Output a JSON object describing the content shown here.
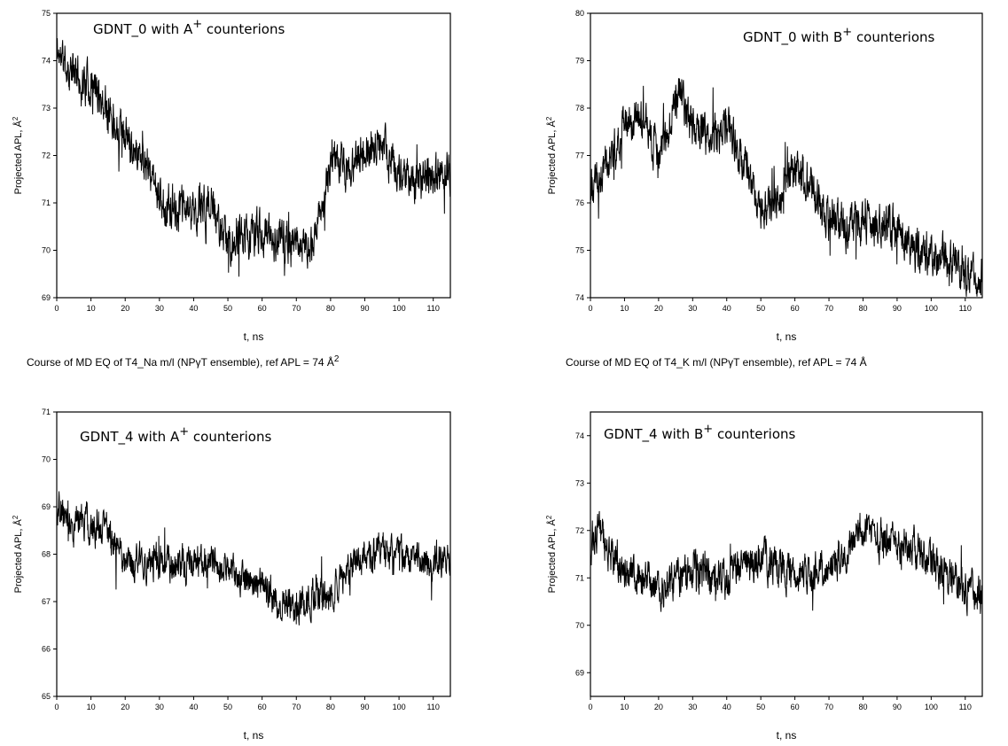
{
  "chart_data": [
    {
      "type": "line",
      "annotation": {
        "pre": "GDNT_0 with A",
        "sup": "+",
        "post": " counterions"
      },
      "xlabel": "t, ns",
      "ylabel": {
        "text": "Projected APL, Å",
        "sup": "2"
      },
      "xlim": [
        0,
        115
      ],
      "ylim": [
        69,
        75
      ],
      "xticks": [
        "0",
        "10",
        "20",
        "30",
        "40",
        "50",
        "60",
        "70",
        "80",
        "90",
        "100",
        "110"
      ],
      "yticks": [
        "69",
        "70",
        "71",
        "72",
        "73",
        "74",
        "75"
      ],
      "trend": {
        "t": [
          0,
          5,
          10,
          15,
          20,
          25,
          30,
          35,
          40,
          45,
          50,
          55,
          60,
          65,
          70,
          75,
          78,
          80,
          85,
          90,
          95,
          100,
          105,
          110,
          115
        ],
        "apl": [
          74.2,
          73.7,
          73.5,
          73.0,
          72.4,
          72.0,
          71.1,
          70.8,
          70.9,
          70.9,
          70.1,
          70.3,
          70.4,
          70.2,
          70.2,
          70.1,
          71.0,
          72.0,
          71.7,
          72.1,
          72.2,
          71.6,
          71.4,
          71.6,
          71.7
        ]
      },
      "noise": 0.35,
      "seed": 11
    },
    {
      "type": "line",
      "annotation": {
        "pre": "GDNT_0 with B",
        "sup": "+",
        "post": " counterions"
      },
      "xlabel": "t, ns",
      "ylabel": {
        "text": "Projected APL, Å",
        "sup": "2"
      },
      "xlim": [
        0,
        115
      ],
      "ylim": [
        74,
        80
      ],
      "xticks": [
        "0",
        "10",
        "20",
        "30",
        "40",
        "50",
        "60",
        "70",
        "80",
        "90",
        "100",
        "110"
      ],
      "yticks": [
        "74",
        "75",
        "76",
        "77",
        "78",
        "79",
        "80"
      ],
      "trend": {
        "t": [
          0,
          5,
          8,
          10,
          15,
          20,
          25,
          26,
          28,
          30,
          35,
          40,
          45,
          48,
          50,
          55,
          60,
          65,
          68,
          70,
          75,
          80,
          85,
          90,
          95,
          100,
          105,
          110,
          115
        ],
        "apl": [
          76.2,
          76.8,
          77.3,
          77.8,
          77.8,
          77.0,
          78.0,
          78.4,
          77.8,
          77.6,
          77.4,
          77.6,
          76.8,
          76.3,
          75.9,
          76.2,
          76.8,
          76.5,
          75.9,
          75.7,
          75.5,
          75.6,
          75.5,
          75.4,
          75.0,
          74.9,
          74.8,
          74.5,
          74.5
        ]
      },
      "noise": 0.35,
      "seed": 23
    },
    {
      "type": "line",
      "annotation": {
        "pre": "GDNT_4 with A",
        "sup": "+",
        "post": " counterions"
      },
      "xlabel": "t, ns",
      "ylabel": {
        "text": "Projected APL, Å",
        "sup": "2"
      },
      "xlim": [
        0,
        115
      ],
      "ylim": [
        65,
        71
      ],
      "xticks": [
        "0",
        "10",
        "20",
        "30",
        "40",
        "50",
        "60",
        "70",
        "80",
        "90",
        "100",
        "110"
      ],
      "yticks": [
        "65",
        "66",
        "67",
        "68",
        "69",
        "70",
        "71"
      ],
      "trend": {
        "t": [
          0,
          5,
          10,
          15,
          20,
          25,
          30,
          35,
          40,
          45,
          50,
          55,
          60,
          65,
          70,
          75,
          80,
          85,
          90,
          95,
          100,
          105,
          110,
          115
        ],
        "apl": [
          69.0,
          68.7,
          68.6,
          68.4,
          67.8,
          67.8,
          67.8,
          67.8,
          67.8,
          67.8,
          67.7,
          67.5,
          67.3,
          67.0,
          66.9,
          67.2,
          67.1,
          67.6,
          68.0,
          68.1,
          68.0,
          67.9,
          67.8,
          67.9
        ]
      },
      "noise": 0.3,
      "seed": 37
    },
    {
      "type": "line",
      "annotation": {
        "pre": "GDNT_4 with B",
        "sup": "+",
        "post": " counterions"
      },
      "xlabel": "t, ns",
      "ylabel": {
        "text": "Projected APL, Å",
        "sup": "2"
      },
      "xlim": [
        0,
        115
      ],
      "ylim": [
        68.5,
        74.5
      ],
      "xticks": [
        "0",
        "10",
        "20",
        "30",
        "40",
        "50",
        "60",
        "70",
        "80",
        "90",
        "100",
        "110"
      ],
      "yticks": [
        "69",
        "70",
        "71",
        "72",
        "73",
        "74"
      ],
      "trend": {
        "t": [
          0,
          3,
          5,
          10,
          15,
          20,
          25,
          30,
          35,
          40,
          45,
          50,
          55,
          60,
          65,
          70,
          75,
          78,
          80,
          85,
          90,
          95,
          100,
          105,
          110,
          115
        ],
        "apl": [
          71.8,
          72.0,
          71.6,
          71.2,
          71.0,
          70.8,
          71.0,
          71.2,
          71.0,
          71.0,
          71.2,
          71.4,
          71.3,
          71.0,
          71.1,
          71.2,
          71.5,
          72.0,
          72.1,
          71.8,
          71.7,
          71.6,
          71.3,
          71.0,
          70.8,
          70.7
        ]
      },
      "noise": 0.32,
      "seed": 53
    }
  ],
  "captions": [
    {
      "text": "Course of MD EQ of T4_Na m/l (NPγT ensemble), ref APL = 74 Å",
      "sup": "2"
    },
    {
      "text": "Course of MD EQ of T4_K m/l (NPγT ensemble), ref APL = 74 Å",
      "sup": ""
    }
  ]
}
